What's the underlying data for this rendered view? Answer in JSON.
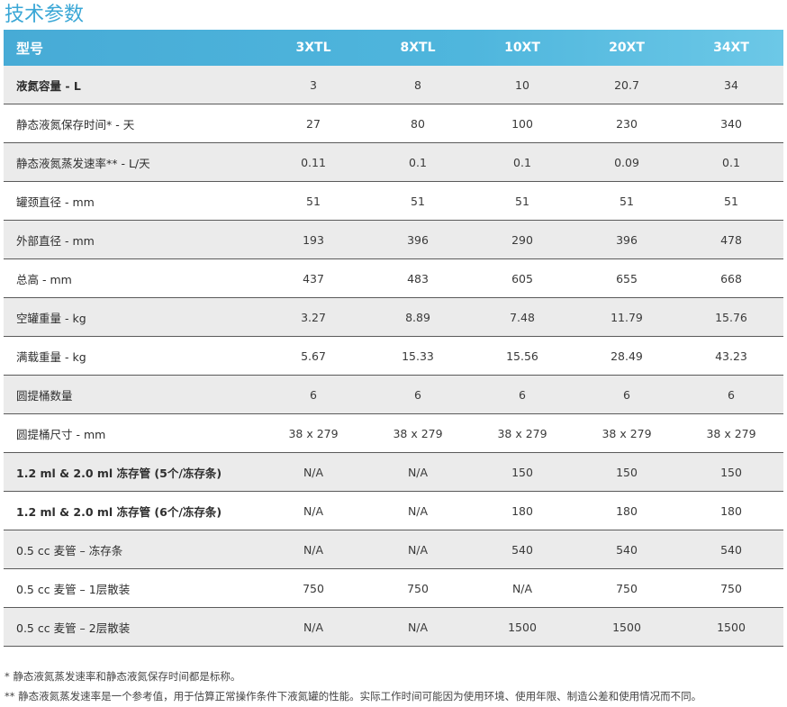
{
  "title": "技术参数",
  "header": [
    "型号",
    "3XTL",
    "8XTL",
    "10XT",
    "20XT",
    "34XT"
  ],
  "rows": [
    {
      "label": "液氮容量 - L",
      "values": [
        "3",
        "8",
        "10",
        "20.7",
        "34"
      ]
    },
    {
      "label": "静态液氮保存时间* - 天",
      "values": [
        "27",
        "80",
        "100",
        "230",
        "340"
      ]
    },
    {
      "label": "静态液氮蒸发速率** - L/天",
      "values": [
        "0.11",
        "0.1",
        "0.1",
        "0.09",
        "0.1"
      ]
    },
    {
      "label": "罐颈直径 - mm",
      "values": [
        "51",
        "51",
        "51",
        "51",
        "51"
      ]
    },
    {
      "label": "外部直径 - mm",
      "values": [
        "193",
        "396",
        "290",
        "396",
        "478"
      ]
    },
    {
      "label": "总高 - mm",
      "values": [
        "437",
        "483",
        "605",
        "655",
        "668"
      ]
    },
    {
      "label": "空罐重量 - kg",
      "values": [
        "3.27",
        "8.89",
        "7.48",
        "11.79",
        "15.76"
      ]
    },
    {
      "label": "满载重量 - kg",
      "values": [
        "5.67",
        "15.33",
        "15.56",
        "28.49",
        "43.23"
      ]
    },
    {
      "label": "圆提桶数量",
      "values": [
        "6",
        "6",
        "6",
        "6",
        "6"
      ]
    },
    {
      "label": "圆提桶尺寸 - mm",
      "values": [
        "38 x 279",
        "38 x 279",
        "38 x 279",
        "38 x 279",
        "38 x 279"
      ]
    },
    {
      "label": "1.2 ml & 2.0 ml 冻存管 (5个/冻存条)",
      "values": [
        "N/A",
        "N/A",
        "150",
        "150",
        "150"
      ]
    },
    {
      "label": "1.2 ml & 2.0 ml 冻存管 (6个/冻存条)",
      "values": [
        "N/A",
        "N/A",
        "180",
        "180",
        "180"
      ]
    },
    {
      "label": "0.5 cc 麦管 – 冻存条",
      "values": [
        "N/A",
        "N/A",
        "540",
        "540",
        "540"
      ]
    },
    {
      "label": "0.5 cc 麦管 – 1层散装",
      "values": [
        "750",
        "750",
        "N/A",
        "750",
        "750"
      ]
    },
    {
      "label": "0.5 cc 麦管 – 2层散装",
      "values": [
        "N/A",
        "N/A",
        "1500",
        "1500",
        "1500"
      ]
    }
  ],
  "footnotes": [
    "* 静态液氮蒸发速率和静态液氮保存时间都是标称。",
    "** 静态液氮蒸发速率是一个参考值，用于估算正常操作条件下液氮罐的性能。实际工作时间可能因为使用环境、使用年限、制造公差和使用情况而不同。"
  ]
}
